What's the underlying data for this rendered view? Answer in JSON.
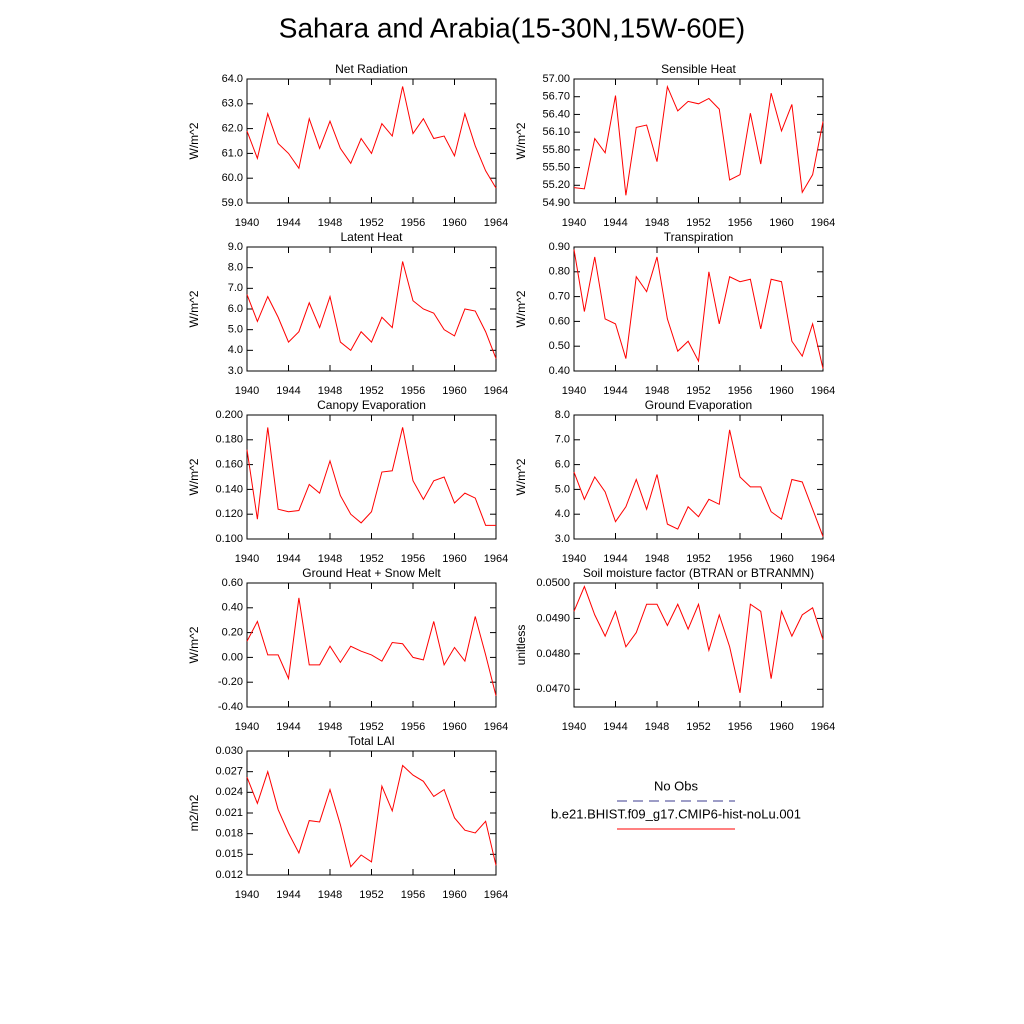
{
  "title": "Sahara and Arabia(15-30N,15W-60E)",
  "legend": {
    "entries": [
      {
        "name": "No Obs",
        "color": "#3b3b8f",
        "dash": true
      },
      {
        "name": "b.e21.BHIST.f09_g17.CMIP6-hist-noLu.001",
        "color": "#ff0000",
        "dash": false
      }
    ]
  },
  "chart_data": [
    {
      "type": "line",
      "title": "Net Radiation",
      "y_label": "W/m^2",
      "color": "#ff0000",
      "x": [
        1940,
        1941,
        1942,
        1943,
        1944,
        1945,
        1946,
        1947,
        1948,
        1949,
        1950,
        1951,
        1952,
        1953,
        1954,
        1955,
        1956,
        1957,
        1958,
        1959,
        1960,
        1961,
        1962,
        1963,
        1964
      ],
      "values": [
        61.9,
        60.8,
        62.6,
        61.4,
        61.0,
        60.4,
        62.4,
        61.2,
        62.3,
        61.2,
        60.6,
        61.6,
        61.0,
        62.2,
        61.7,
        63.7,
        61.8,
        62.4,
        61.6,
        61.7,
        60.9,
        62.6,
        61.3,
        60.3,
        59.6
      ],
      "xlim": [
        1940,
        1964
      ],
      "xticks": [
        1940,
        1944,
        1948,
        1952,
        1956,
        1960,
        1964
      ],
      "ylim": [
        59,
        64
      ],
      "yticks": [
        {
          "value": 59,
          "label": "59.0"
        },
        {
          "value": 60,
          "label": "60.0"
        },
        {
          "value": 61,
          "label": "61.0"
        },
        {
          "value": 62,
          "label": "62.0"
        },
        {
          "value": 63,
          "label": "63.0"
        },
        {
          "value": 64,
          "label": "64.0"
        }
      ]
    },
    {
      "type": "line",
      "title": "Sensible Heat",
      "y_label": "W/m^2",
      "color": "#ff0000",
      "x": [
        1940,
        1941,
        1942,
        1943,
        1944,
        1945,
        1946,
        1947,
        1948,
        1949,
        1950,
        1951,
        1952,
        1953,
        1954,
        1955,
        1956,
        1957,
        1958,
        1959,
        1960,
        1961,
        1962,
        1963,
        1964
      ],
      "values": [
        55.16,
        55.14,
        55.99,
        55.75,
        56.72,
        55.03,
        56.18,
        56.22,
        55.6,
        56.87,
        56.46,
        56.62,
        56.58,
        56.67,
        56.49,
        55.29,
        55.38,
        56.42,
        55.56,
        56.76,
        56.12,
        56.57,
        55.08,
        55.38,
        56.28
      ],
      "xlim": [
        1940,
        1964
      ],
      "xticks": [
        1940,
        1944,
        1948,
        1952,
        1956,
        1960,
        1964
      ],
      "ylim": [
        54.9,
        57
      ],
      "yticks": [
        {
          "value": 54.9,
          "label": "54.90"
        },
        {
          "value": 55.2,
          "label": "55.20"
        },
        {
          "value": 55.5,
          "label": "55.50"
        },
        {
          "value": 55.8,
          "label": "55.80"
        },
        {
          "value": 56.1,
          "label": "56.10"
        },
        {
          "value": 56.4,
          "label": "56.40"
        },
        {
          "value": 56.7,
          "label": "56.70"
        },
        {
          "value": 57,
          "label": "57.00"
        }
      ]
    },
    {
      "type": "line",
      "title": "Latent Heat",
      "y_label": "W/m^2",
      "color": "#ff0000",
      "x": [
        1940,
        1941,
        1942,
        1943,
        1944,
        1945,
        1946,
        1947,
        1948,
        1949,
        1950,
        1951,
        1952,
        1953,
        1954,
        1955,
        1956,
        1957,
        1958,
        1959,
        1960,
        1961,
        1962,
        1963,
        1964
      ],
      "values": [
        6.7,
        5.4,
        6.6,
        5.6,
        4.4,
        4.9,
        6.3,
        5.1,
        6.6,
        4.4,
        4.0,
        4.9,
        4.4,
        5.6,
        5.1,
        8.3,
        6.4,
        6.0,
        5.8,
        5.0,
        4.7,
        6.0,
        5.9,
        4.9,
        3.6
      ],
      "xlim": [
        1940,
        1964
      ],
      "xticks": [
        1940,
        1944,
        1948,
        1952,
        1956,
        1960,
        1964
      ],
      "ylim": [
        3,
        9
      ],
      "yticks": [
        {
          "value": 3,
          "label": "3.0"
        },
        {
          "value": 4,
          "label": "4.0"
        },
        {
          "value": 5,
          "label": "5.0"
        },
        {
          "value": 6,
          "label": "6.0"
        },
        {
          "value": 7,
          "label": "7.0"
        },
        {
          "value": 8,
          "label": "8.0"
        },
        {
          "value": 9,
          "label": "9.0"
        }
      ]
    },
    {
      "type": "line",
      "title": "Transpiration",
      "y_label": "W/m^2",
      "color": "#ff0000",
      "x": [
        1940,
        1941,
        1942,
        1943,
        1944,
        1945,
        1946,
        1947,
        1948,
        1949,
        1950,
        1951,
        1952,
        1953,
        1954,
        1955,
        1956,
        1957,
        1958,
        1959,
        1960,
        1961,
        1962,
        1963,
        1964
      ],
      "values": [
        0.89,
        0.64,
        0.86,
        0.61,
        0.59,
        0.45,
        0.78,
        0.72,
        0.86,
        0.61,
        0.48,
        0.52,
        0.44,
        0.8,
        0.59,
        0.78,
        0.76,
        0.77,
        0.57,
        0.77,
        0.76,
        0.52,
        0.46,
        0.59,
        0.41
      ],
      "xlim": [
        1940,
        1964
      ],
      "xticks": [
        1940,
        1944,
        1948,
        1952,
        1956,
        1960,
        1964
      ],
      "ylim": [
        0.4,
        0.9
      ],
      "yticks": [
        {
          "value": 0.4,
          "label": "0.40"
        },
        {
          "value": 0.5,
          "label": "0.50"
        },
        {
          "value": 0.6,
          "label": "0.60"
        },
        {
          "value": 0.7,
          "label": "0.70"
        },
        {
          "value": 0.8,
          "label": "0.80"
        },
        {
          "value": 0.9,
          "label": "0.90"
        }
      ]
    },
    {
      "type": "line",
      "title": "Canopy Evaporation",
      "y_label": "W/m^2",
      "color": "#ff0000",
      "x": [
        1940,
        1941,
        1942,
        1943,
        1944,
        1945,
        1946,
        1947,
        1948,
        1949,
        1950,
        1951,
        1952,
        1953,
        1954,
        1955,
        1956,
        1957,
        1958,
        1959,
        1960,
        1961,
        1962,
        1963,
        1964
      ],
      "values": [
        0.172,
        0.116,
        0.19,
        0.124,
        0.122,
        0.123,
        0.144,
        0.137,
        0.163,
        0.135,
        0.12,
        0.113,
        0.122,
        0.154,
        0.155,
        0.19,
        0.147,
        0.132,
        0.147,
        0.15,
        0.129,
        0.137,
        0.133,
        0.111,
        0.111
      ],
      "xlim": [
        1940,
        1964
      ],
      "xticks": [
        1940,
        1944,
        1948,
        1952,
        1956,
        1960,
        1964
      ],
      "ylim": [
        0.1,
        0.2
      ],
      "yticks": [
        {
          "value": 0.1,
          "label": "0.100"
        },
        {
          "value": 0.12,
          "label": "0.120"
        },
        {
          "value": 0.14,
          "label": "0.140"
        },
        {
          "value": 0.16,
          "label": "0.160"
        },
        {
          "value": 0.18,
          "label": "0.180"
        },
        {
          "value": 0.2,
          "label": "0.200"
        }
      ]
    },
    {
      "type": "line",
      "title": "Ground Evaporation",
      "y_label": "W/m^2",
      "color": "#ff0000",
      "x": [
        1940,
        1941,
        1942,
        1943,
        1944,
        1945,
        1946,
        1947,
        1948,
        1949,
        1950,
        1951,
        1952,
        1953,
        1954,
        1955,
        1956,
        1957,
        1958,
        1959,
        1960,
        1961,
        1962,
        1963,
        1964
      ],
      "values": [
        5.7,
        4.6,
        5.5,
        4.9,
        3.7,
        4.3,
        5.4,
        4.2,
        5.6,
        3.6,
        3.4,
        4.3,
        3.9,
        4.6,
        4.4,
        7.4,
        5.5,
        5.1,
        5.1,
        4.1,
        3.8,
        5.4,
        5.3,
        4.2,
        3.1
      ],
      "xlim": [
        1940,
        1964
      ],
      "xticks": [
        1940,
        1944,
        1948,
        1952,
        1956,
        1960,
        1964
      ],
      "ylim": [
        3,
        8
      ],
      "yticks": [
        {
          "value": 3,
          "label": "3.0"
        },
        {
          "value": 4,
          "label": "4.0"
        },
        {
          "value": 5,
          "label": "5.0"
        },
        {
          "value": 6,
          "label": "6.0"
        },
        {
          "value": 7,
          "label": "7.0"
        },
        {
          "value": 8,
          "label": "8.0"
        }
      ]
    },
    {
      "type": "line",
      "title": "Ground Heat + Snow Melt",
      "y_label": "W/m^2",
      "color": "#ff0000",
      "x": [
        1940,
        1941,
        1942,
        1943,
        1944,
        1945,
        1946,
        1947,
        1948,
        1949,
        1950,
        1951,
        1952,
        1953,
        1954,
        1955,
        1956,
        1957,
        1958,
        1959,
        1960,
        1961,
        1962,
        1963,
        1964
      ],
      "values": [
        0.13,
        0.29,
        0.02,
        0.02,
        -0.17,
        0.48,
        -0.06,
        -0.06,
        0.09,
        -0.04,
        0.09,
        0.05,
        0.02,
        -0.03,
        0.12,
        0.11,
        0.0,
        -0.02,
        0.29,
        -0.06,
        0.08,
        -0.03,
        0.33,
        0.02,
        -0.31
      ],
      "xlim": [
        1940,
        1964
      ],
      "xticks": [
        1940,
        1944,
        1948,
        1952,
        1956,
        1960,
        1964
      ],
      "ylim": [
        -0.4,
        0.6
      ],
      "yticks": [
        {
          "value": -0.4,
          "label": "-0.40"
        },
        {
          "value": -0.2,
          "label": "-0.20"
        },
        {
          "value": 0,
          "label": "0.00"
        },
        {
          "value": 0.2,
          "label": "0.20"
        },
        {
          "value": 0.4,
          "label": "0.40"
        },
        {
          "value": 0.6,
          "label": "0.60"
        }
      ]
    },
    {
      "type": "line",
      "title": "Soil moisture factor (BTRAN or BTRANMN)",
      "y_label": "unitless",
      "color": "#ff0000",
      "x": [
        1940,
        1941,
        1942,
        1943,
        1944,
        1945,
        1946,
        1947,
        1948,
        1949,
        1950,
        1951,
        1952,
        1953,
        1954,
        1955,
        1956,
        1957,
        1958,
        1959,
        1960,
        1961,
        1962,
        1963,
        1964
      ],
      "values": [
        0.0492,
        0.0499,
        0.0491,
        0.0485,
        0.0492,
        0.0482,
        0.0486,
        0.0494,
        0.0494,
        0.0488,
        0.0494,
        0.0487,
        0.0494,
        0.0481,
        0.0491,
        0.0482,
        0.0469,
        0.0494,
        0.0492,
        0.0473,
        0.0492,
        0.0485,
        0.0491,
        0.0493,
        0.0484
      ],
      "xlim": [
        1940,
        1964
      ],
      "xticks": [
        1940,
        1944,
        1948,
        1952,
        1956,
        1960,
        1964
      ],
      "ylim": [
        0.0465,
        0.05
      ],
      "yticks": [
        {
          "value": 0.047,
          "label": "0.0470"
        },
        {
          "value": 0.048,
          "label": "0.0480"
        },
        {
          "value": 0.049,
          "label": "0.0490"
        },
        {
          "value": 0.05,
          "label": "0.0500"
        }
      ]
    },
    {
      "type": "line",
      "title": "Total LAI",
      "y_label": "m2/m2",
      "color": "#ff0000",
      "x": [
        1940,
        1941,
        1942,
        1943,
        1944,
        1945,
        1946,
        1947,
        1948,
        1949,
        1950,
        1951,
        1952,
        1953,
        1954,
        1955,
        1956,
        1957,
        1958,
        1959,
        1960,
        1961,
        1962,
        1963,
        1964
      ],
      "values": [
        0.0262,
        0.0224,
        0.027,
        0.0215,
        0.0181,
        0.0152,
        0.0199,
        0.0197,
        0.0244,
        0.0193,
        0.0132,
        0.0149,
        0.0139,
        0.0249,
        0.0213,
        0.0279,
        0.0265,
        0.0256,
        0.0234,
        0.0244,
        0.0203,
        0.0185,
        0.0181,
        0.0198,
        0.0134
      ],
      "xlim": [
        1940,
        1964
      ],
      "xticks": [
        1940,
        1944,
        1948,
        1952,
        1956,
        1960,
        1964
      ],
      "ylim": [
        0.012,
        0.03
      ],
      "yticks": [
        {
          "value": 0.012,
          "label": "0.012"
        },
        {
          "value": 0.015,
          "label": "0.015"
        },
        {
          "value": 0.018,
          "label": "0.018"
        },
        {
          "value": 0.021,
          "label": "0.021"
        },
        {
          "value": 0.024,
          "label": "0.024"
        },
        {
          "value": 0.027,
          "label": "0.027"
        },
        {
          "value": 0.03,
          "label": "0.030"
        }
      ]
    }
  ]
}
